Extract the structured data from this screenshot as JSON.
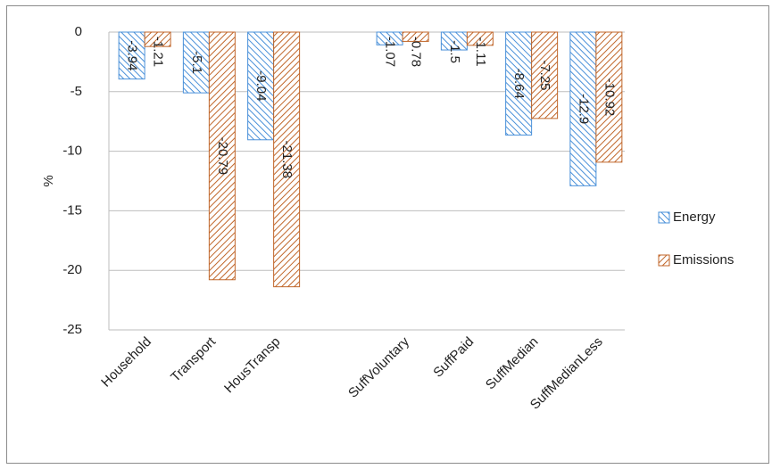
{
  "chart_data": {
    "type": "bar",
    "y_label": "%",
    "categories": [
      "Household",
      "Transport",
      "HousTransp",
      null,
      "SuffVoluntary",
      "SuffPaid",
      "SuffMedian",
      "SuffMedianLess"
    ],
    "series": [
      {
        "name": "Energy",
        "color": "#4a90d9",
        "values": [
          -3.94,
          -5.1,
          -9.04,
          null,
          -1.07,
          -1.5,
          -8.64,
          -12.9
        ]
      },
      {
        "name": "Emissions",
        "color": "#c0662a",
        "values": [
          -1.21,
          -20.79,
          -21.38,
          null,
          -0.78,
          -1.11,
          -7.25,
          -10.92
        ]
      }
    ],
    "ylim": [
      -25,
      0
    ],
    "yticks": [
      -25,
      -20,
      -15,
      -10,
      -5,
      0
    ],
    "grid": true,
    "legend": "right"
  }
}
